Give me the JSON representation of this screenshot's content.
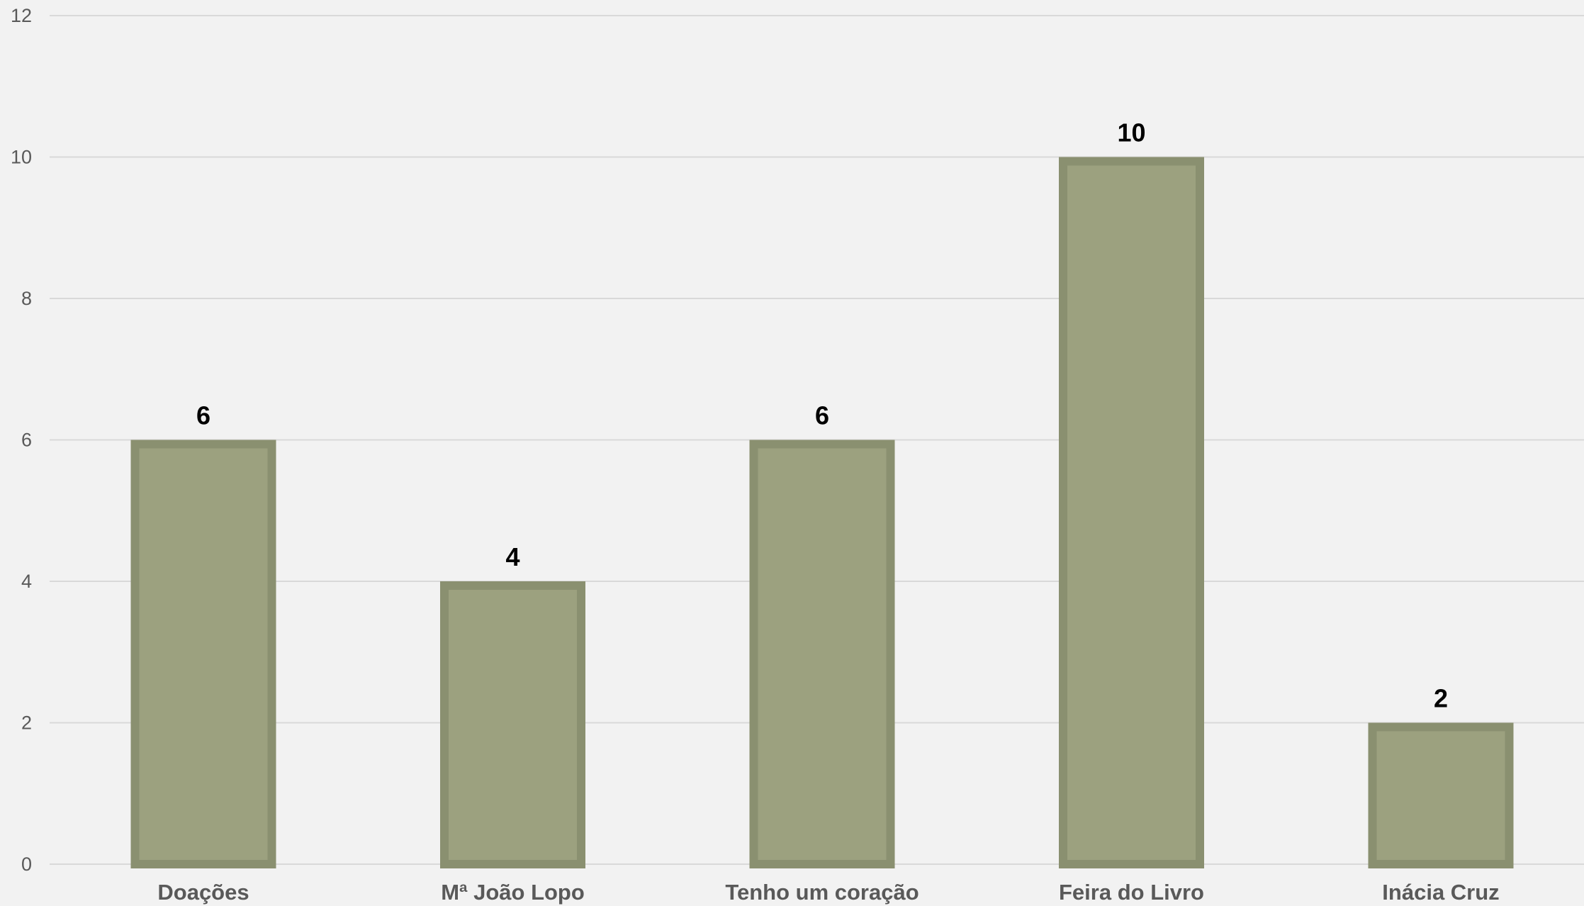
{
  "chart_data": {
    "type": "bar",
    "title": "",
    "xlabel": "",
    "ylabel": "",
    "categories": [
      "Doações",
      "Mª João Lopo",
      "Tenho um coração",
      "Feira do Livro",
      "Inácia Cruz"
    ],
    "series": [
      {
        "values": [
          6,
          4,
          6,
          10,
          2
        ]
      }
    ],
    "ylim": [
      0,
      12
    ],
    "yticks": [
      0,
      2,
      4,
      6,
      8,
      10,
      12
    ],
    "grid": true,
    "legend": "none",
    "data_labels": true,
    "colors": {
      "bar_fill": "#9ca17f",
      "bar_border": "#8a9070",
      "grid": "#d9d9d9",
      "tick_text": "#595959",
      "data_label_text": "#000000",
      "background": "#f2f2f2"
    }
  }
}
